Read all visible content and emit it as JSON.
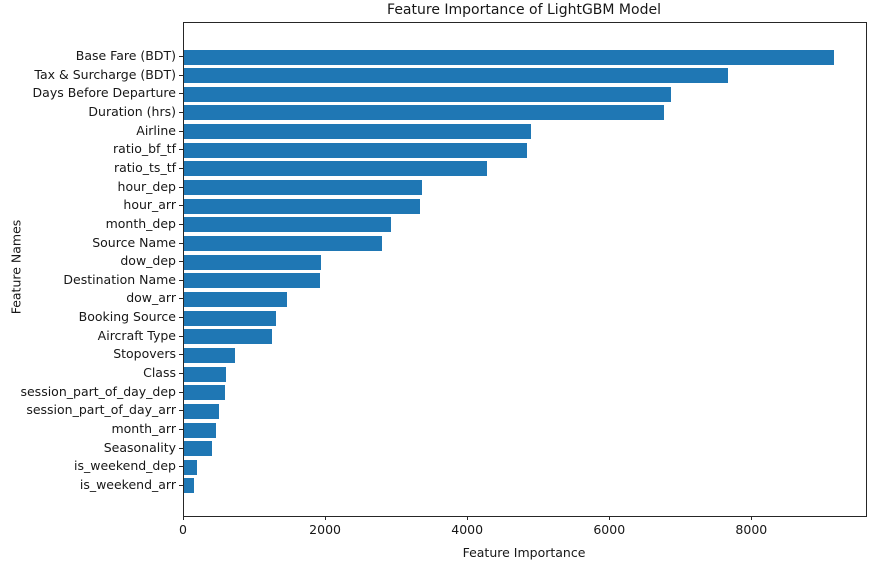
{
  "chart_data": {
    "type": "bar",
    "orientation": "horizontal",
    "title": "Feature Importance of LightGBM Model",
    "xlabel": "Feature Importance",
    "ylabel": "Feature Names",
    "xlim": [
      0,
      9600
    ],
    "xticks": [
      0,
      2000,
      4000,
      6000,
      8000
    ],
    "grid": false,
    "legend": "none",
    "bar_color": "#1f77b4",
    "categories": [
      "Base Fare (BDT)",
      "Tax & Surcharge (BDT)",
      "Days Before Departure",
      "Duration (hrs)",
      "Airline",
      "ratio_bf_tf",
      "ratio_ts_tf",
      "hour_dep",
      "hour_arr",
      "month_dep",
      "Source Name",
      "dow_dep",
      "Destination Name",
      "dow_arr",
      "Booking Source",
      "Aircraft Type",
      "Stopovers",
      "Class",
      "session_part_of_day_dep",
      "session_part_of_day_arr",
      "month_arr",
      "Seasonality",
      "is_weekend_dep",
      "is_weekend_arr"
    ],
    "values": [
      9150,
      7660,
      6850,
      6750,
      4890,
      4830,
      4260,
      3350,
      3320,
      2920,
      2790,
      1930,
      1920,
      1450,
      1300,
      1240,
      720,
      595,
      580,
      490,
      455,
      395,
      190,
      135
    ]
  }
}
